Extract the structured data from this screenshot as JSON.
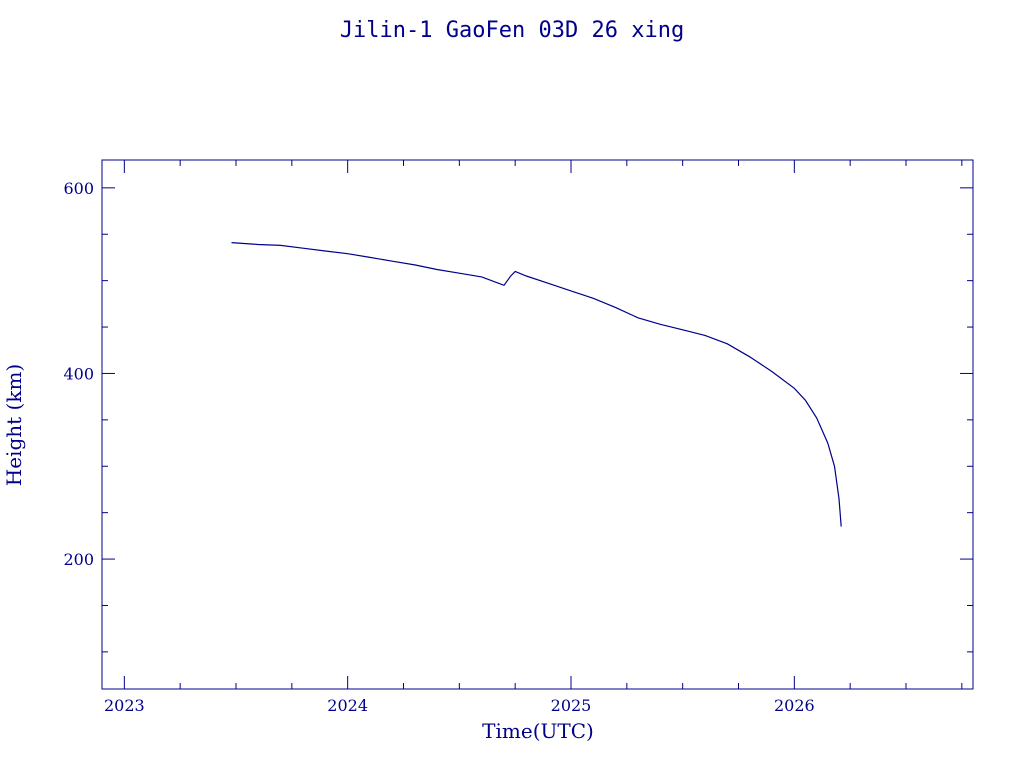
{
  "chart_data": {
    "type": "line",
    "title": "Jilin-1 GaoFen 03D 26 xing",
    "xlabel": "Time(UTC)",
    "ylabel": "Height (km)",
    "xlim": [
      2022.9,
      2026.8
    ],
    "ylim": [
      60,
      630
    ],
    "x_ticks": [
      {
        "value": 2023,
        "label": "2023"
      },
      {
        "value": 2024,
        "label": "2024"
      },
      {
        "value": 2025,
        "label": "2025"
      },
      {
        "value": 2026,
        "label": "2026"
      }
    ],
    "y_ticks": [
      {
        "value": 200,
        "label": "200"
      },
      {
        "value": 400,
        "label": "400"
      },
      {
        "value": 600,
        "label": "600"
      }
    ],
    "grid": false,
    "color": "#00008b",
    "series": [
      {
        "x": [
          2023.48,
          2023.6,
          2023.7,
          2023.8,
          2023.9,
          2024.0,
          2024.1,
          2024.2,
          2024.3,
          2024.4,
          2024.5,
          2024.6,
          2024.7,
          2024.73,
          2024.75,
          2024.8,
          2024.9,
          2025.0,
          2025.1,
          2025.2,
          2025.3,
          2025.4,
          2025.5,
          2025.6,
          2025.7,
          2025.8,
          2025.9,
          2026.0,
          2026.05,
          2026.1,
          2026.15,
          2026.18,
          2026.2,
          2026.21
        ],
        "y": [
          541,
          539,
          538,
          535,
          532,
          529,
          525,
          521,
          517,
          512,
          508,
          504,
          495,
          505,
          510,
          505,
          497,
          489,
          481,
          471,
          460,
          453,
          447,
          441,
          432,
          418,
          402,
          384,
          371,
          352,
          325,
          300,
          265,
          235
        ]
      }
    ]
  }
}
